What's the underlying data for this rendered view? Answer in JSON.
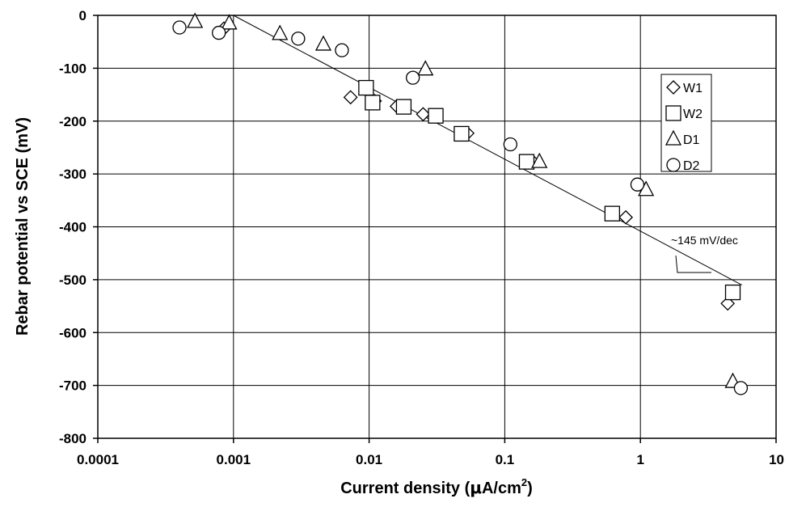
{
  "chart_data": {
    "type": "scatter",
    "title": "",
    "xlabel": {
      "main": "Current density (",
      "mu": "μ",
      "unit": "A/cm",
      "sup": "2",
      "close": ")"
    },
    "ylabel": "Rebar potential vs SCE (mV)",
    "x_scale": "log",
    "xlim": [
      0.0001,
      10
    ],
    "ylim": [
      -800,
      0
    ],
    "x_ticks": [
      0.0001,
      0.001,
      0.01,
      0.1,
      1,
      10
    ],
    "x_tick_labels": [
      "0.0001",
      "0.001",
      "0.01",
      "0.1",
      "1",
      "10"
    ],
    "y_ticks": [
      0,
      -100,
      -200,
      -300,
      -400,
      -500,
      -600,
      -700,
      -800
    ],
    "y_tick_labels": [
      "0",
      "-100",
      "-200",
      "-300",
      "-400",
      "-500",
      "-600",
      "-700",
      "-800"
    ],
    "grid": true,
    "legend": "right",
    "series": [
      {
        "name": "W1",
        "marker": "diamond",
        "points": [
          [
            0.00085,
            -25
          ],
          [
            0.0073,
            -155
          ],
          [
            0.011,
            -162
          ],
          [
            0.016,
            -172
          ],
          [
            0.025,
            -187
          ],
          [
            0.053,
            -223
          ],
          [
            0.16,
            -276
          ],
          [
            0.78,
            -382
          ],
          [
            4.4,
            -545
          ]
        ]
      },
      {
        "name": "W2",
        "marker": "square",
        "points": [
          [
            0.0095,
            -137
          ],
          [
            0.0106,
            -165
          ],
          [
            0.018,
            -173
          ],
          [
            0.031,
            -190
          ],
          [
            0.048,
            -224
          ],
          [
            0.145,
            -277
          ],
          [
            0.62,
            -375
          ],
          [
            4.8,
            -524
          ]
        ]
      },
      {
        "name": "D1",
        "marker": "triangle",
        "points": [
          [
            0.00052,
            -12
          ],
          [
            0.00093,
            -15
          ],
          [
            0.0022,
            -35
          ],
          [
            0.0046,
            -55
          ],
          [
            0.026,
            -102
          ],
          [
            0.18,
            -277
          ],
          [
            1.1,
            -330
          ],
          [
            4.8,
            -693
          ]
        ]
      },
      {
        "name": "D2",
        "marker": "circle",
        "points": [
          [
            0.0004,
            -23
          ],
          [
            0.00078,
            -33
          ],
          [
            0.003,
            -44
          ],
          [
            0.0063,
            -66
          ],
          [
            0.021,
            -118
          ],
          [
            0.11,
            -244
          ],
          [
            0.95,
            -320
          ],
          [
            5.5,
            -705
          ]
        ]
      }
    ],
    "trendline": {
      "from": [
        0.001,
        0
      ],
      "to": [
        5.6,
        -510
      ]
    },
    "annotation": {
      "text": "~145 mV/dec"
    }
  }
}
